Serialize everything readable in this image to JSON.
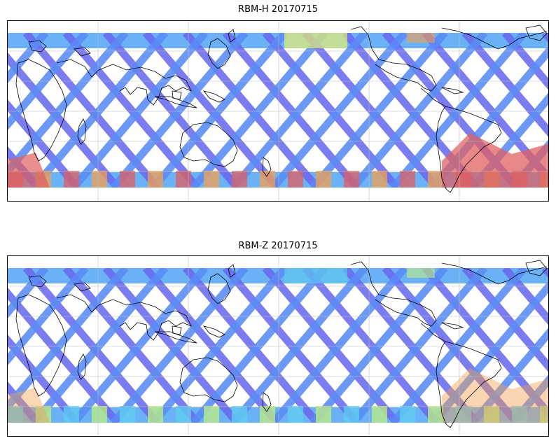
{
  "panels": [
    {
      "title": "RBM-H 20170715",
      "south_band_color": "#e06060",
      "south_alt_color": "#f4a050",
      "north_accent_color": "#e8f070",
      "hotspot_color": "#e06060",
      "hotspot_intensity": 1.0
    },
    {
      "title": "RBM-Z 20170715",
      "south_band_color": "#60d0f0",
      "south_alt_color": "#c0f080",
      "north_accent_color": "#60c8f0",
      "hotspot_color": "#f0a050",
      "hotspot_intensity": 0.6
    }
  ],
  "colors": {
    "track_main": "#6a6af0",
    "track_alt": "#5a8cf5",
    "band_north": "#5aa8f5",
    "coast": "#000000",
    "grid": "#bbbbbb"
  }
}
